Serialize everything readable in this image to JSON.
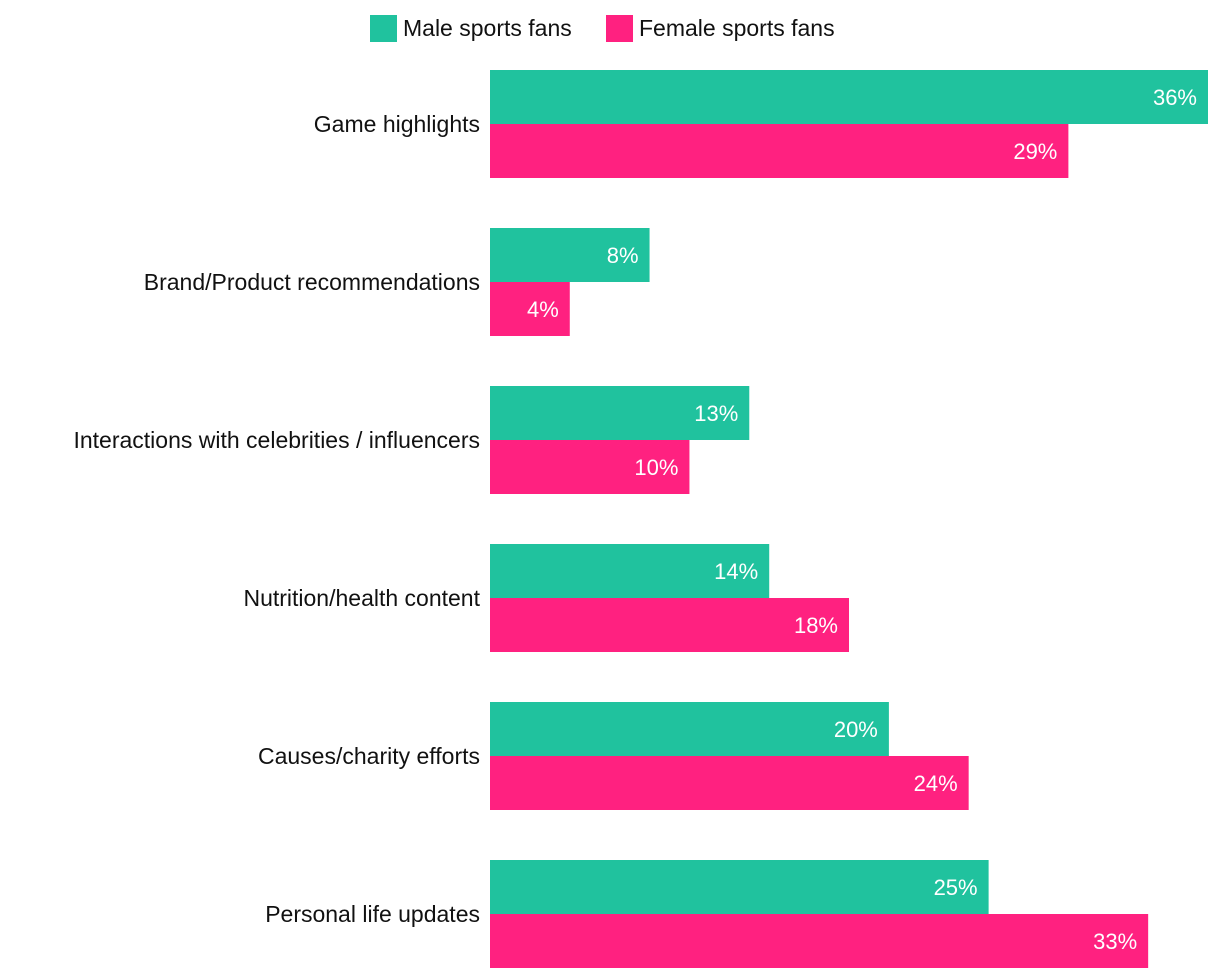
{
  "chart_data": {
    "type": "bar",
    "orientation": "horizontal",
    "title": "",
    "xlabel": "",
    "ylabel": "",
    "categories": [
      "Game highlights",
      "Brand/Product recommendations",
      "Interactions with celebrities / influencers",
      "Nutrition/health content",
      "Causes/charity efforts",
      "Personal life updates"
    ],
    "series": [
      {
        "name": "Male sports fans",
        "color": "#20c29e",
        "values": [
          36,
          8,
          13,
          14,
          20,
          25
        ],
        "labels": [
          "36%",
          "8%",
          "13%",
          "14%",
          "20%",
          "25%"
        ]
      },
      {
        "name": "Female sports fans",
        "color": "#ff2180",
        "values": [
          29,
          4,
          10,
          18,
          24,
          33
        ],
        "labels": [
          "29%",
          "4%",
          "10%",
          "18%",
          "24%",
          "33%"
        ]
      }
    ],
    "xlim": [
      0,
      36
    ],
    "value_unit": "%",
    "grid": false,
    "legend_position": "top-center",
    "data_labels": "inside-end"
  }
}
